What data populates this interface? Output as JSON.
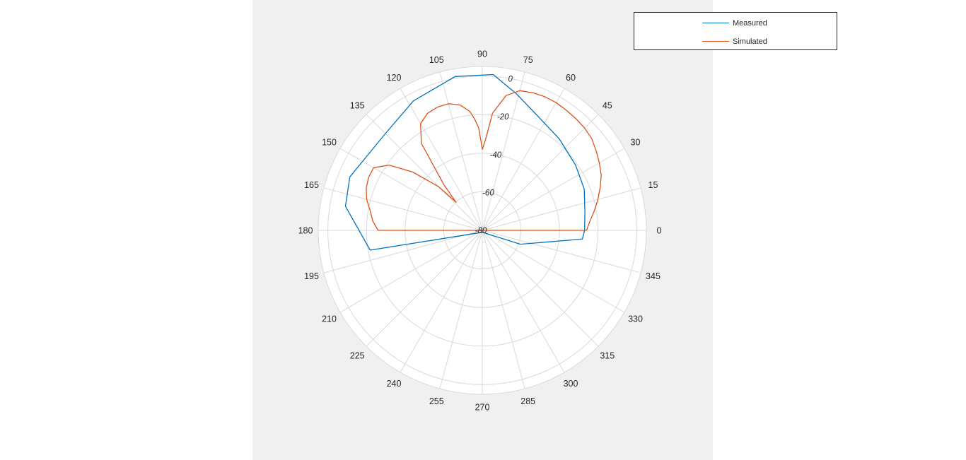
{
  "chart_data": {
    "type": "polar-line",
    "theta_ticks": [
      "0",
      "15",
      "30",
      "45",
      "60",
      "75",
      "90",
      "105",
      "120",
      "135",
      "150",
      "165",
      "180",
      "195",
      "210",
      "225",
      "240",
      "255",
      "270",
      "285",
      "300",
      "315",
      "330",
      "345"
    ],
    "r_ticks": [
      "-80",
      "-60",
      "-40",
      "-20",
      "0"
    ],
    "rlim": [
      -80,
      5
    ],
    "grid": true,
    "legend_position": "top-right",
    "series": [
      {
        "name": "Measured",
        "color": "#0072bd",
        "theta": [
          0,
          10,
          22,
          35,
          50,
          62,
          76,
          86,
          100,
          118,
          135,
          158,
          170,
          190,
          275,
          340,
          355,
          360
        ],
        "r": [
          -27,
          -26,
          -23,
          -21,
          -18,
          -15,
          -7,
          1,
          1,
          -4,
          -9,
          -6,
          -8,
          -21,
          -79,
          -59,
          -28,
          -27
        ]
      },
      {
        "name": "Simulated",
        "color": "#d95319",
        "theta": [
          0,
          5,
          10,
          15,
          20,
          25,
          30,
          35,
          40,
          45,
          50,
          55,
          60,
          65,
          70,
          75,
          80,
          85,
          88,
          90,
          91,
          92,
          94,
          96,
          100,
          105,
          110,
          115,
          120,
          125,
          130,
          133,
          134,
          135,
          140,
          145,
          150,
          155,
          160,
          165,
          170,
          175,
          180
        ],
        "r": [
          -26,
          -24,
          -21,
          -18,
          -15,
          -12,
          -10,
          -8,
          -6,
          -5,
          -4.5,
          -4,
          -3.5,
          -3.5,
          -4,
          -5,
          -9,
          -19,
          -33,
          -38,
          -33,
          -27,
          -22,
          -18,
          -14,
          -12,
          -12,
          -13,
          -16,
          -25,
          -49,
          -60,
          -55,
          -48,
          -33,
          -21,
          -15,
          -15,
          -16,
          -18,
          -21,
          -23,
          -26
        ]
      }
    ]
  }
}
